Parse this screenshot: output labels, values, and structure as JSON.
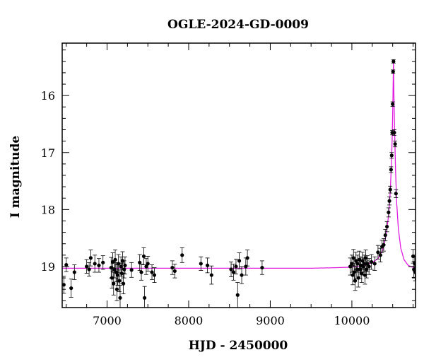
{
  "chart_data": {
    "type": "scatter",
    "title": "OGLE-2024-GD-0009",
    "xlabel": "HJD - 2450000",
    "ylabel": "I magnitude",
    "xlim": [
      6450,
      10780
    ],
    "ylim": [
      19.72,
      15.08
    ],
    "y_inverted": true,
    "xticks": [
      7000,
      8000,
      9000,
      10000
    ],
    "yticks": [
      16,
      17,
      18,
      19
    ],
    "grid": false,
    "colors": {
      "points": "#000000",
      "model": "#e020e0",
      "axes": "#000000"
    },
    "model_curve": {
      "name": "",
      "peak_x": 10510,
      "peak_y": 15.4,
      "baseline_y": 19.03,
      "x": [
        6450,
        9500,
        9800,
        10000,
        10150,
        10250,
        10320,
        10380,
        10420,
        10450,
        10470,
        10485,
        10495,
        10503,
        10510,
        10517,
        10525,
        10535,
        10550,
        10570,
        10600,
        10640,
        10690,
        10740,
        10780
      ],
      "y": [
        19.03,
        19.03,
        19.02,
        19.01,
        18.98,
        18.93,
        18.86,
        18.7,
        18.45,
        18.1,
        17.7,
        17.2,
        16.7,
        16.1,
        15.4,
        16.1,
        16.7,
        17.3,
        17.9,
        18.35,
        18.68,
        18.88,
        18.98,
        19.01,
        19.02
      ]
    },
    "points": [
      {
        "x": 6470,
        "y": 19.32,
        "err": 0.15
      },
      {
        "x": 6500,
        "y": 18.97,
        "err": 0.12
      },
      {
        "x": 6560,
        "y": 19.38,
        "err": 0.16
      },
      {
        "x": 6600,
        "y": 19.1,
        "err": 0.13
      },
      {
        "x": 6750,
        "y": 19.0,
        "err": 0.12
      },
      {
        "x": 6780,
        "y": 19.05,
        "err": 0.12
      },
      {
        "x": 6800,
        "y": 18.85,
        "err": 0.14
      },
      {
        "x": 6850,
        "y": 18.95,
        "err": 0.15
      },
      {
        "x": 6900,
        "y": 18.98,
        "err": 0.12
      },
      {
        "x": 6950,
        "y": 18.93,
        "err": 0.12
      },
      {
        "x": 7050,
        "y": 19.02,
        "err": 0.18
      },
      {
        "x": 7060,
        "y": 19.2,
        "err": 0.18
      },
      {
        "x": 7070,
        "y": 18.92,
        "err": 0.16
      },
      {
        "x": 7080,
        "y": 19.3,
        "err": 0.2
      },
      {
        "x": 7090,
        "y": 19.05,
        "err": 0.15
      },
      {
        "x": 7100,
        "y": 18.88,
        "err": 0.17
      },
      {
        "x": 7110,
        "y": 19.1,
        "err": 0.17
      },
      {
        "x": 7120,
        "y": 19.4,
        "err": 0.2
      },
      {
        "x": 7130,
        "y": 19.15,
        "err": 0.18
      },
      {
        "x": 7140,
        "y": 18.95,
        "err": 0.16
      },
      {
        "x": 7150,
        "y": 19.25,
        "err": 0.19
      },
      {
        "x": 7160,
        "y": 19.55,
        "err": 0.22
      },
      {
        "x": 7170,
        "y": 19.0,
        "err": 0.17
      },
      {
        "x": 7180,
        "y": 19.12,
        "err": 0.18
      },
      {
        "x": 7190,
        "y": 18.9,
        "err": 0.16
      },
      {
        "x": 7200,
        "y": 19.3,
        "err": 0.18
      },
      {
        "x": 7210,
        "y": 19.05,
        "err": 0.15
      },
      {
        "x": 7220,
        "y": 18.98,
        "err": 0.15
      },
      {
        "x": 7300,
        "y": 19.06,
        "err": 0.13
      },
      {
        "x": 7400,
        "y": 18.93,
        "err": 0.14
      },
      {
        "x": 7420,
        "y": 19.1,
        "err": 0.14
      },
      {
        "x": 7450,
        "y": 18.82,
        "err": 0.15
      },
      {
        "x": 7460,
        "y": 19.55,
        "err": 0.2
      },
      {
        "x": 7480,
        "y": 19.0,
        "err": 0.14
      },
      {
        "x": 7500,
        "y": 18.95,
        "err": 0.13
      },
      {
        "x": 7550,
        "y": 19.1,
        "err": 0.13
      },
      {
        "x": 7580,
        "y": 19.15,
        "err": 0.13
      },
      {
        "x": 7800,
        "y": 19.02,
        "err": 0.12
      },
      {
        "x": 7830,
        "y": 19.08,
        "err": 0.12
      },
      {
        "x": 7920,
        "y": 18.8,
        "err": 0.13
      },
      {
        "x": 8150,
        "y": 18.95,
        "err": 0.12
      },
      {
        "x": 8230,
        "y": 18.98,
        "err": 0.13
      },
      {
        "x": 8280,
        "y": 19.15,
        "err": 0.16
      },
      {
        "x": 8520,
        "y": 19.05,
        "err": 0.13
      },
      {
        "x": 8550,
        "y": 19.1,
        "err": 0.14
      },
      {
        "x": 8580,
        "y": 19.0,
        "err": 0.13
      },
      {
        "x": 8600,
        "y": 19.5,
        "err": 0.22
      },
      {
        "x": 8620,
        "y": 18.9,
        "err": 0.14
      },
      {
        "x": 8650,
        "y": 19.15,
        "err": 0.15
      },
      {
        "x": 8700,
        "y": 19.0,
        "err": 0.15
      },
      {
        "x": 8720,
        "y": 18.85,
        "err": 0.14
      },
      {
        "x": 8900,
        "y": 19.02,
        "err": 0.12
      },
      {
        "x": 9980,
        "y": 19.0,
        "err": 0.15
      },
      {
        "x": 10000,
        "y": 18.95,
        "err": 0.15
      },
      {
        "x": 10010,
        "y": 19.15,
        "err": 0.17
      },
      {
        "x": 10020,
        "y": 18.85,
        "err": 0.15
      },
      {
        "x": 10030,
        "y": 19.1,
        "err": 0.16
      },
      {
        "x": 10040,
        "y": 19.25,
        "err": 0.17
      },
      {
        "x": 10050,
        "y": 18.9,
        "err": 0.15
      },
      {
        "x": 10060,
        "y": 19.05,
        "err": 0.16
      },
      {
        "x": 10070,
        "y": 18.95,
        "err": 0.15
      },
      {
        "x": 10080,
        "y": 19.2,
        "err": 0.16
      },
      {
        "x": 10090,
        "y": 18.88,
        "err": 0.15
      },
      {
        "x": 10100,
        "y": 19.05,
        "err": 0.16
      },
      {
        "x": 10110,
        "y": 18.98,
        "err": 0.15
      },
      {
        "x": 10120,
        "y": 19.12,
        "err": 0.16
      },
      {
        "x": 10130,
        "y": 18.9,
        "err": 0.15
      },
      {
        "x": 10140,
        "y": 19.0,
        "err": 0.15
      },
      {
        "x": 10150,
        "y": 18.95,
        "err": 0.15
      },
      {
        "x": 10160,
        "y": 19.15,
        "err": 0.16
      },
      {
        "x": 10170,
        "y": 18.85,
        "err": 0.14
      },
      {
        "x": 10180,
        "y": 19.05,
        "err": 0.15
      },
      {
        "x": 10190,
        "y": 18.95,
        "err": 0.14
      },
      {
        "x": 10210,
        "y": 19.0,
        "err": 0.14
      },
      {
        "x": 10240,
        "y": 18.92,
        "err": 0.13
      },
      {
        "x": 10280,
        "y": 18.95,
        "err": 0.12
      },
      {
        "x": 10320,
        "y": 18.75,
        "err": 0.12
      },
      {
        "x": 10350,
        "y": 18.8,
        "err": 0.12
      },
      {
        "x": 10370,
        "y": 18.65,
        "err": 0.11
      },
      {
        "x": 10390,
        "y": 18.62,
        "err": 0.11
      },
      {
        "x": 10410,
        "y": 18.45,
        "err": 0.1
      },
      {
        "x": 10430,
        "y": 18.3,
        "err": 0.09
      },
      {
        "x": 10450,
        "y": 18.05,
        "err": 0.08
      },
      {
        "x": 10460,
        "y": 17.85,
        "err": 0.07
      },
      {
        "x": 10470,
        "y": 17.65,
        "err": 0.06
      },
      {
        "x": 10480,
        "y": 17.3,
        "err": 0.05
      },
      {
        "x": 10488,
        "y": 17.05,
        "err": 0.05
      },
      {
        "x": 10495,
        "y": 16.65,
        "err": 0.04
      },
      {
        "x": 10500,
        "y": 16.15,
        "err": 0.04
      },
      {
        "x": 10505,
        "y": 15.58,
        "err": 0.03
      },
      {
        "x": 10510,
        "y": 15.4,
        "err": 0.03
      },
      {
        "x": 10520,
        "y": 16.65,
        "err": 0.05
      },
      {
        "x": 10530,
        "y": 16.85,
        "err": 0.05
      },
      {
        "x": 10540,
        "y": 17.72,
        "err": 0.07
      },
      {
        "x": 10750,
        "y": 18.82,
        "err": 0.12
      },
      {
        "x": 10760,
        "y": 19.05,
        "err": 0.14
      },
      {
        "x": 10770,
        "y": 18.95,
        "err": 0.13
      },
      {
        "x": 10775,
        "y": 19.1,
        "err": 0.15
      }
    ]
  }
}
